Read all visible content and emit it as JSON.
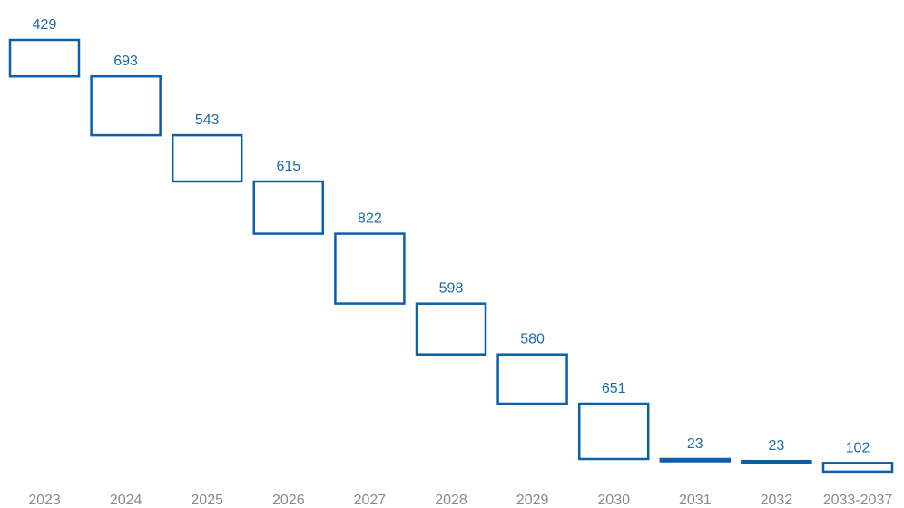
{
  "chart_data": {
    "type": "bar",
    "subtype": "waterfall",
    "categories": [
      "2023",
      "2024",
      "2025",
      "2026",
      "2027",
      "2028",
      "2029",
      "2030",
      "2031",
      "2032",
      "2033-2037"
    ],
    "values": [
      429,
      693,
      543,
      615,
      822,
      598,
      580,
      651,
      23,
      23,
      102
    ],
    "value_labels": [
      "429",
      "693",
      "543",
      "615",
      "822",
      "598",
      "580",
      "651",
      "23",
      "23",
      "102"
    ],
    "title": "",
    "xlabel": "",
    "ylabel": "",
    "grid": false,
    "legend": "none",
    "bar_color": "#0a5fa8",
    "label_color": "#1a6ab3",
    "tick_color": "#8a8a8a"
  }
}
